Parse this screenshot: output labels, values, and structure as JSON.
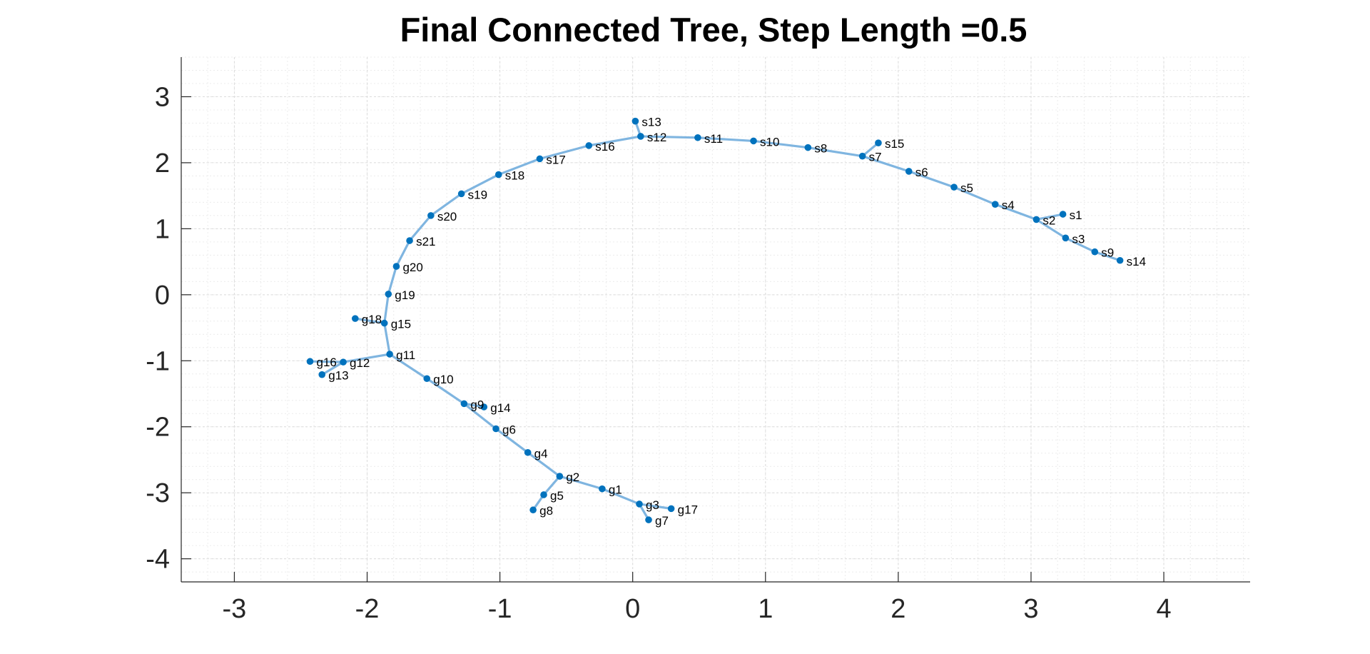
{
  "chart_data": {
    "type": "scatter",
    "title": "Final Connected Tree, Step Length =0.5",
    "xlabel": "",
    "ylabel": "",
    "xlim": [
      -3.4,
      4.65
    ],
    "ylim": [
      -4.35,
      3.6
    ],
    "xticks": [
      -3,
      -2,
      -1,
      0,
      1,
      2,
      3,
      4
    ],
    "yticks": [
      -4,
      -3,
      -2,
      -1,
      0,
      1,
      2,
      3
    ],
    "xtick_labels": [
      "-3",
      "-2",
      "-1",
      "0",
      "1",
      "2",
      "3",
      "4"
    ],
    "ytick_labels": [
      "-4",
      "-3",
      "-2",
      "-1",
      "0",
      "1",
      "2",
      "3"
    ],
    "grid": true,
    "minor_grid": true,
    "colors": {
      "edge": "#7fb5e0",
      "node": "#0072bd",
      "axis": "#262626",
      "grid": "#dcdcdc"
    },
    "nodes": [
      {
        "label": "s1",
        "x": 3.24,
        "y": 1.22
      },
      {
        "label": "s2",
        "x": 3.04,
        "y": 1.14
      },
      {
        "label": "s3",
        "x": 3.26,
        "y": 0.86
      },
      {
        "label": "s4",
        "x": 2.73,
        "y": 1.37
      },
      {
        "label": "s5",
        "x": 2.42,
        "y": 1.63
      },
      {
        "label": "s6",
        "x": 2.08,
        "y": 1.87
      },
      {
        "label": "s7",
        "x": 1.73,
        "y": 2.1
      },
      {
        "label": "s8",
        "x": 1.32,
        "y": 2.23
      },
      {
        "label": "s9",
        "x": 3.48,
        "y": 0.65
      },
      {
        "label": "s10",
        "x": 0.91,
        "y": 2.33
      },
      {
        "label": "s11",
        "x": 0.49,
        "y": 2.38
      },
      {
        "label": "s12",
        "x": 0.06,
        "y": 2.4
      },
      {
        "label": "s13",
        "x": 0.02,
        "y": 2.63
      },
      {
        "label": "s14",
        "x": 3.67,
        "y": 0.52
      },
      {
        "label": "s15",
        "x": 1.85,
        "y": 2.3
      },
      {
        "label": "s16",
        "x": -0.33,
        "y": 2.26
      },
      {
        "label": "s17",
        "x": -0.7,
        "y": 2.06
      },
      {
        "label": "s18",
        "x": -1.01,
        "y": 1.82
      },
      {
        "label": "s19",
        "x": -1.29,
        "y": 1.53
      },
      {
        "label": "s20",
        "x": -1.52,
        "y": 1.2
      },
      {
        "label": "s21",
        "x": -1.68,
        "y": 0.82
      },
      {
        "label": "g1",
        "x": -0.23,
        "y": -2.94
      },
      {
        "label": "g2",
        "x": -0.55,
        "y": -2.75
      },
      {
        "label": "g3",
        "x": 0.05,
        "y": -3.17
      },
      {
        "label": "g4",
        "x": -0.79,
        "y": -2.39
      },
      {
        "label": "g5",
        "x": -0.67,
        "y": -3.03
      },
      {
        "label": "g6",
        "x": -1.03,
        "y": -2.03
      },
      {
        "label": "g7",
        "x": 0.12,
        "y": -3.41
      },
      {
        "label": "g8",
        "x": -0.75,
        "y": -3.26
      },
      {
        "label": "g9",
        "x": -1.27,
        "y": -1.65
      },
      {
        "label": "g10",
        "x": -1.55,
        "y": -1.27
      },
      {
        "label": "g11",
        "x": -1.83,
        "y": -0.9
      },
      {
        "label": "g12",
        "x": -2.18,
        "y": -1.02
      },
      {
        "label": "g13",
        "x": -2.34,
        "y": -1.21
      },
      {
        "label": "g14",
        "x": -1.12,
        "y": -1.7
      },
      {
        "label": "g15",
        "x": -1.87,
        "y": -0.43
      },
      {
        "label": "g16",
        "x": -2.43,
        "y": -1.01
      },
      {
        "label": "g17",
        "x": 0.29,
        "y": -3.24
      },
      {
        "label": "g18",
        "x": -2.09,
        "y": -0.36
      },
      {
        "label": "g19",
        "x": -1.84,
        "y": 0.01
      },
      {
        "label": "g20",
        "x": -1.78,
        "y": 0.43
      }
    ],
    "edges": [
      [
        "s14",
        "s9"
      ],
      [
        "s9",
        "s3"
      ],
      [
        "s3",
        "s2"
      ],
      [
        "s2",
        "s1"
      ],
      [
        "s2",
        "s4"
      ],
      [
        "s4",
        "s5"
      ],
      [
        "s5",
        "s6"
      ],
      [
        "s6",
        "s7"
      ],
      [
        "s7",
        "s15"
      ],
      [
        "s7",
        "s8"
      ],
      [
        "s8",
        "s10"
      ],
      [
        "s10",
        "s11"
      ],
      [
        "s11",
        "s12"
      ],
      [
        "s12",
        "s13"
      ],
      [
        "s12",
        "s16"
      ],
      [
        "s16",
        "s17"
      ],
      [
        "s17",
        "s18"
      ],
      [
        "s18",
        "s19"
      ],
      [
        "s19",
        "s20"
      ],
      [
        "s20",
        "s21"
      ],
      [
        "s21",
        "g20"
      ],
      [
        "g20",
        "g19"
      ],
      [
        "g19",
        "g15"
      ],
      [
        "g15",
        "g18"
      ],
      [
        "g15",
        "g11"
      ],
      [
        "g11",
        "g12"
      ],
      [
        "g12",
        "g16"
      ],
      [
        "g12",
        "g13"
      ],
      [
        "g11",
        "g10"
      ],
      [
        "g10",
        "g9"
      ],
      [
        "g9",
        "g14"
      ],
      [
        "g9",
        "g6"
      ],
      [
        "g6",
        "g4"
      ],
      [
        "g4",
        "g2"
      ],
      [
        "g2",
        "g5"
      ],
      [
        "g5",
        "g8"
      ],
      [
        "g2",
        "g1"
      ],
      [
        "g1",
        "g3"
      ],
      [
        "g3",
        "g17"
      ],
      [
        "g3",
        "g7"
      ]
    ]
  }
}
